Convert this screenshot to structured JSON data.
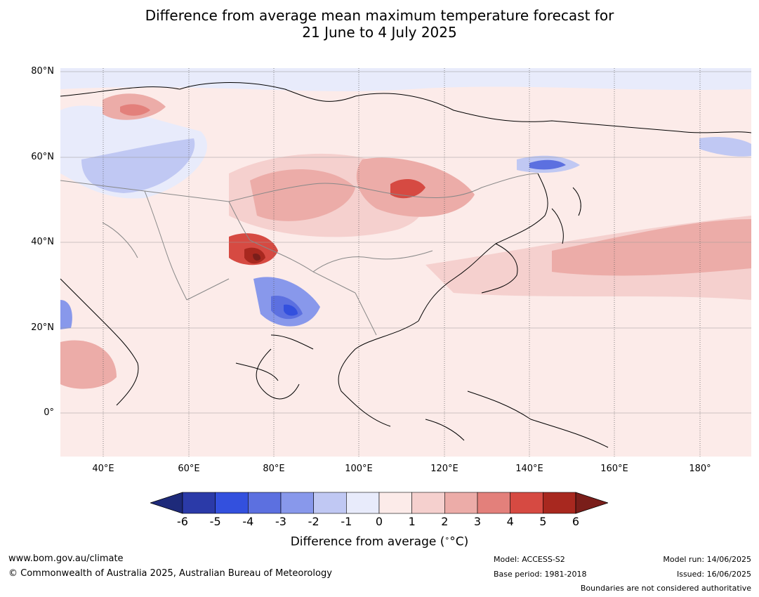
{
  "title_line1": "Difference from average mean maximum temperature forecast for",
  "title_line2": "21 June to 4 July 2025",
  "latitude_labels": [
    "80°N",
    "60°N",
    "40°N",
    "20°N",
    "0°"
  ],
  "longitude_labels": [
    "40°E",
    "60°E",
    "80°E",
    "100°E",
    "120°E",
    "140°E",
    "160°E",
    "180°"
  ],
  "colorbar": {
    "label": "Difference from average (",
    "label_unit": "°C)",
    "ticks": [
      "-6",
      "-5",
      "-4",
      "-3",
      "-2",
      "-1",
      "0",
      "1",
      "2",
      "3",
      "4",
      "5",
      "6"
    ],
    "colors": [
      "#1e2a7a",
      "#2b3aa8",
      "#3350de",
      "#5c70e0",
      "#8898eb",
      "#c0c8f3",
      "#e8ebfb",
      "#fcebe9",
      "#f5d0ce",
      "#ecaca8",
      "#e3807b",
      "#d64a42",
      "#a8281f",
      "#7a1e1a"
    ]
  },
  "footer": {
    "website": "www.bom.gov.au/climate",
    "copyright": "© Commonwealth of Australia 2025, Australian Bureau of Meteorology",
    "model": "Model: ACCESS-S2",
    "base_period": "Base period: 1981-2018",
    "model_run": "Model run: 14/06/2025",
    "issued": "Issued: 16/06/2025",
    "disclaimer": "Boundaries are not considered authoritative"
  }
}
